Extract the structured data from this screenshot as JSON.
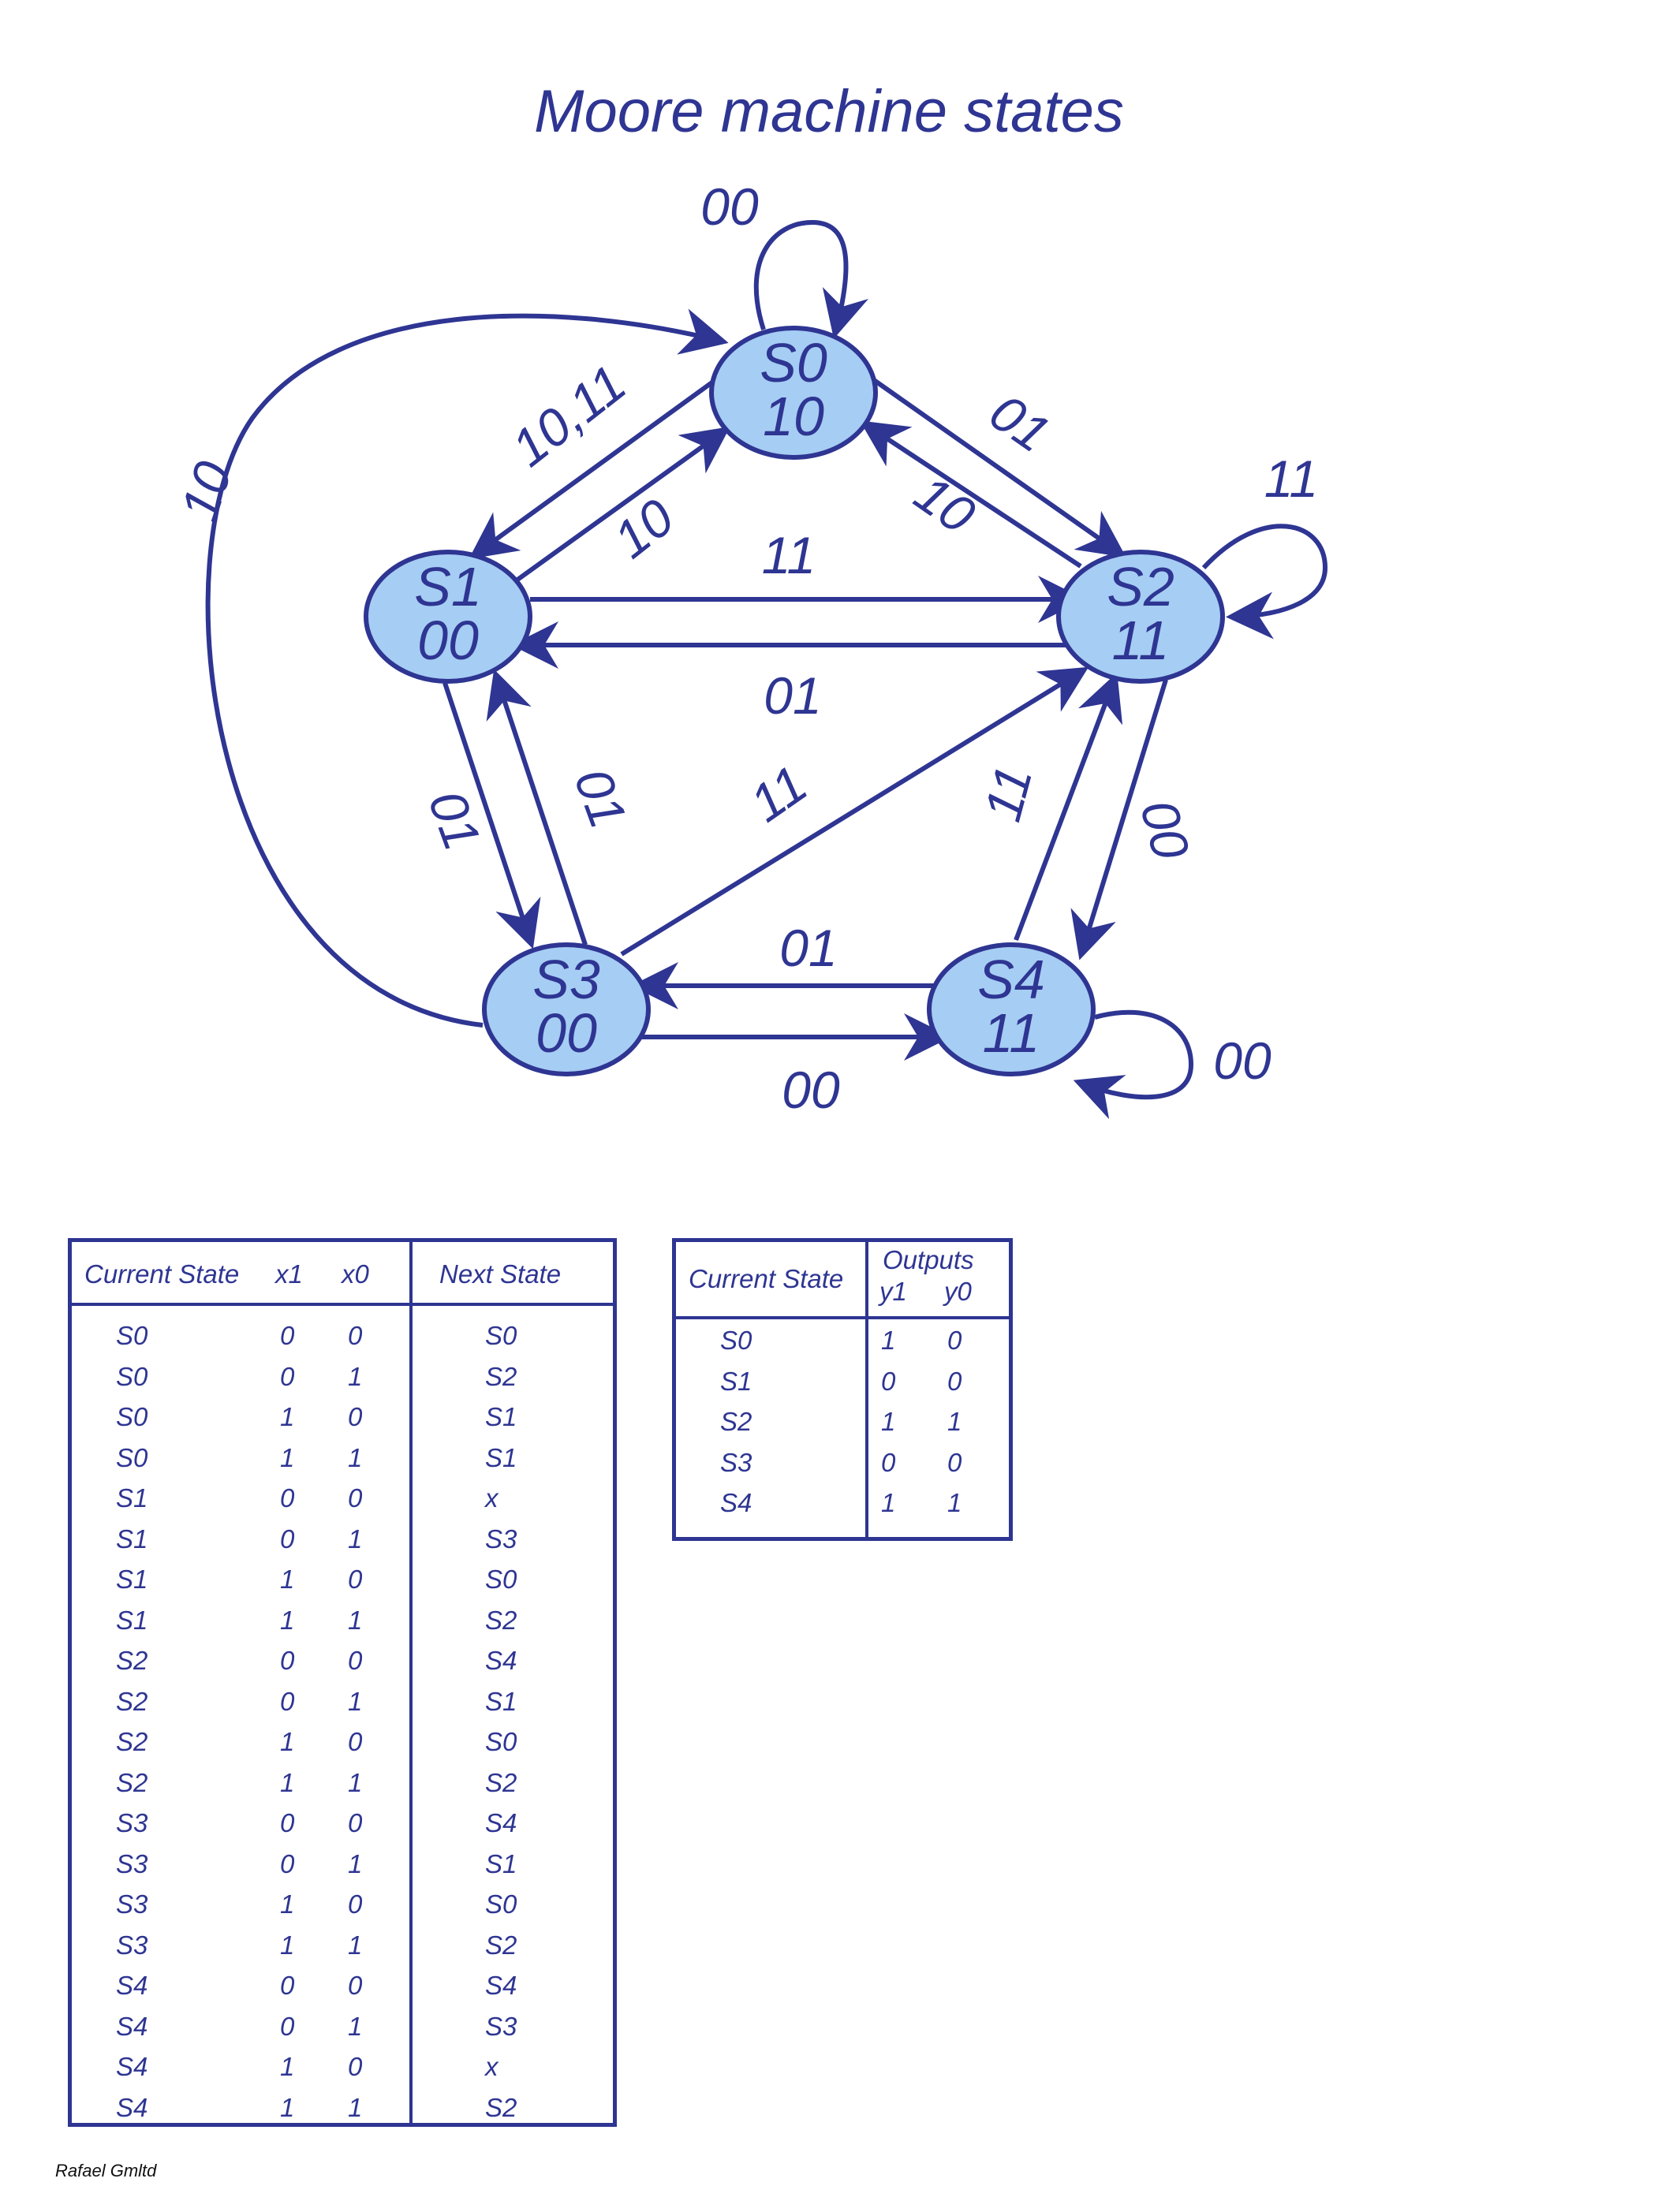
{
  "title": "Moore machine states",
  "credit": "Rafael Gmltd",
  "colors": {
    "ink": "#2e3592",
    "node_fill": "#a6cdf3"
  },
  "states": [
    {
      "id": "S0",
      "output": "10"
    },
    {
      "id": "S1",
      "output": "00"
    },
    {
      "id": "S2",
      "output": "11"
    },
    {
      "id": "S3",
      "output": "00"
    },
    {
      "id": "S4",
      "output": "11"
    }
  ],
  "transitions": [
    {
      "from": "S0",
      "to": "S0",
      "label": "00"
    },
    {
      "from": "S0",
      "to": "S1",
      "label": "10,11"
    },
    {
      "from": "S1",
      "to": "S0",
      "label": "10"
    },
    {
      "from": "S0",
      "to": "S2",
      "label": "01"
    },
    {
      "from": "S2",
      "to": "S0",
      "label": "10"
    },
    {
      "from": "S2",
      "to": "S2",
      "label": "11"
    },
    {
      "from": "S1",
      "to": "S2",
      "label": "11"
    },
    {
      "from": "S2",
      "to": "S1",
      "label": "01"
    },
    {
      "from": "S1",
      "to": "S3",
      "label": "01"
    },
    {
      "from": "S3",
      "to": "S1",
      "label": "01"
    },
    {
      "from": "S3",
      "to": "S2",
      "label": "11"
    },
    {
      "from": "S2",
      "to": "S4",
      "label": "00"
    },
    {
      "from": "S4",
      "to": "S2",
      "label": "11"
    },
    {
      "from": "S4",
      "to": "S3",
      "label": "01"
    },
    {
      "from": "S3",
      "to": "S4",
      "label": "00"
    },
    {
      "from": "S4",
      "to": "S4",
      "label": "00"
    },
    {
      "from": "S3",
      "to": "S0",
      "label": "10"
    }
  ],
  "next_state_table": {
    "headers": {
      "current": "Current State",
      "x1": "x1",
      "x0": "x0",
      "next": "Next State"
    },
    "rows": [
      [
        "S0",
        "0",
        "0",
        "S0"
      ],
      [
        "S0",
        "0",
        "1",
        "S2"
      ],
      [
        "S0",
        "1",
        "0",
        "S1"
      ],
      [
        "S0",
        "1",
        "1",
        "S1"
      ],
      [
        "S1",
        "0",
        "0",
        "x"
      ],
      [
        "S1",
        "0",
        "1",
        "S3"
      ],
      [
        "S1",
        "1",
        "0",
        "S0"
      ],
      [
        "S1",
        "1",
        "1",
        "S2"
      ],
      [
        "S2",
        "0",
        "0",
        "S4"
      ],
      [
        "S2",
        "0",
        "1",
        "S1"
      ],
      [
        "S2",
        "1",
        "0",
        "S0"
      ],
      [
        "S2",
        "1",
        "1",
        "S2"
      ],
      [
        "S3",
        "0",
        "0",
        "S4"
      ],
      [
        "S3",
        "0",
        "1",
        "S1"
      ],
      [
        "S3",
        "1",
        "0",
        "S0"
      ],
      [
        "S3",
        "1",
        "1",
        "S2"
      ],
      [
        "S4",
        "0",
        "0",
        "S4"
      ],
      [
        "S4",
        "0",
        "1",
        "S3"
      ],
      [
        "S4",
        "1",
        "0",
        "x"
      ],
      [
        "S4",
        "1",
        "1",
        "S2"
      ]
    ]
  },
  "output_table": {
    "headers": {
      "current": "Current State",
      "outputs": "Outputs",
      "y1": "y1",
      "y0": "y0"
    },
    "rows": [
      [
        "S0",
        "1",
        "0"
      ],
      [
        "S1",
        "0",
        "0"
      ],
      [
        "S2",
        "1",
        "1"
      ],
      [
        "S3",
        "0",
        "0"
      ],
      [
        "S4",
        "1",
        "1"
      ]
    ]
  }
}
